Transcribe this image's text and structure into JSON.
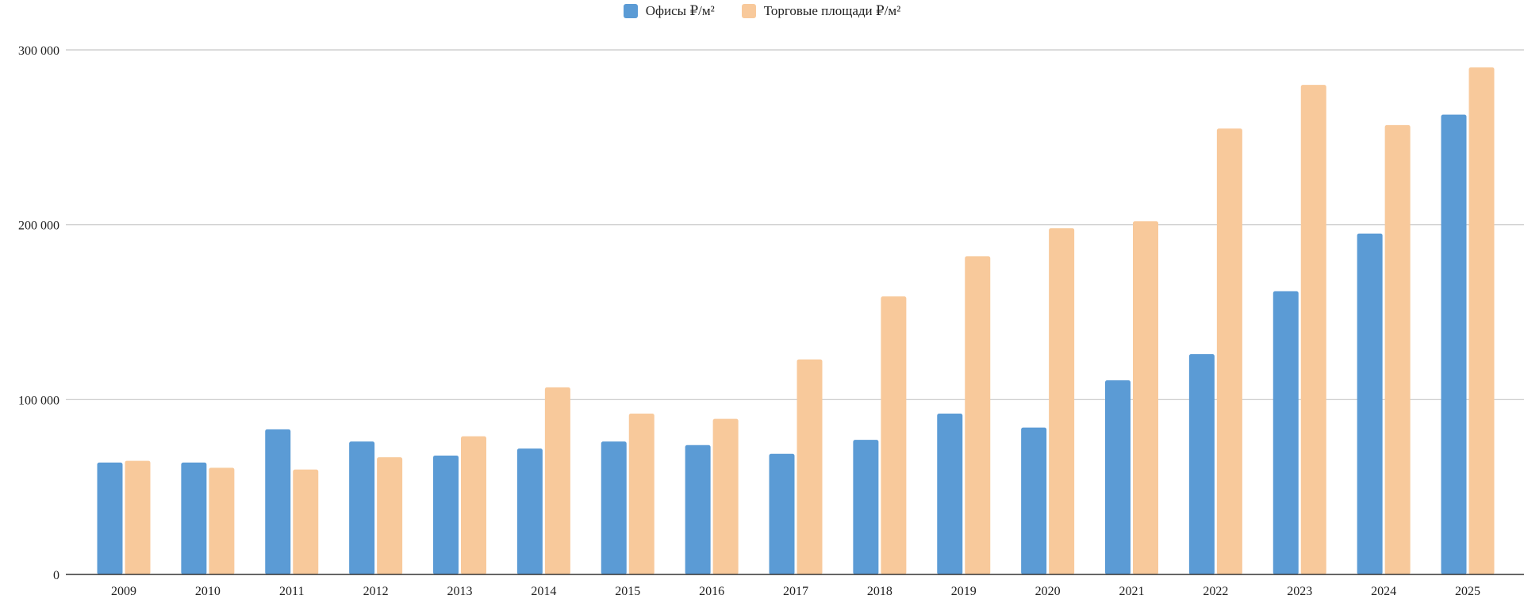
{
  "chart_data": {
    "type": "bar",
    "categories": [
      "2009",
      "2010",
      "2011",
      "2012",
      "2013",
      "2014",
      "2015",
      "2016",
      "2017",
      "2018",
      "2019",
      "2020",
      "2021",
      "2022",
      "2023",
      "2024",
      "2025"
    ],
    "series": [
      {
        "name": "Офисы ₽/м²",
        "color": "#5b9bd5",
        "values": [
          64000,
          64000,
          83000,
          76000,
          68000,
          72000,
          76000,
          74000,
          69000,
          77000,
          92000,
          84000,
          111000,
          126000,
          162000,
          195000,
          263000
        ]
      },
      {
        "name": "Торговые площади ₽/м²",
        "color": "#f8c99b",
        "values": [
          65000,
          61000,
          60000,
          67000,
          79000,
          107000,
          92000,
          89000,
          123000,
          159000,
          182000,
          198000,
          202000,
          255000,
          280000,
          257000,
          290000
        ]
      }
    ],
    "yticks": [
      0,
      100000,
      200000,
      300000
    ],
    "ytick_labels": [
      "0",
      "100 000",
      "200 000",
      "300 000"
    ],
    "ylim": [
      0,
      300000
    ],
    "title": "",
    "xlabel": "",
    "ylabel": "",
    "legend_position": "top-center",
    "grid": true
  }
}
